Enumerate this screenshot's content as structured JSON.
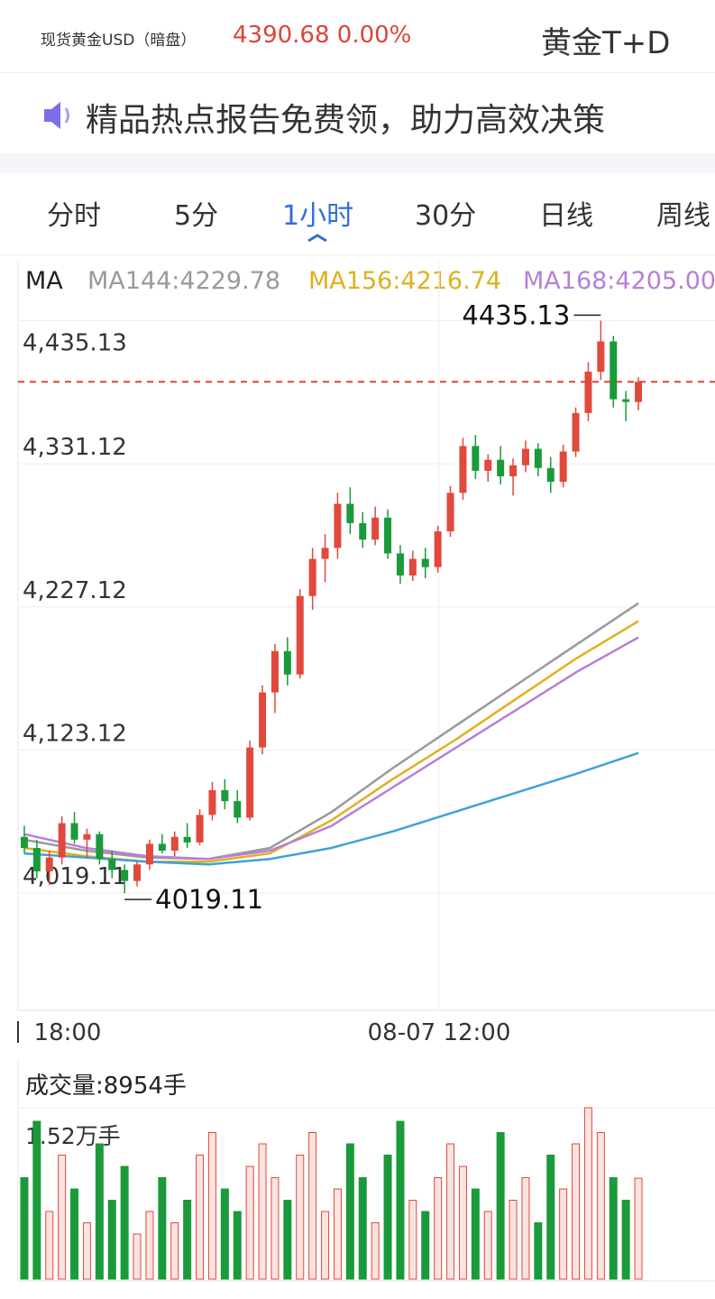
{
  "header": {
    "instrument": "现货黄金USD（暗盘）",
    "quote": "4390.68 0.00%",
    "product": "黄金T+D"
  },
  "banner": {
    "text": "精品热点报告免费领，助力高效决策"
  },
  "tabs": {
    "items": [
      "分时",
      "5分",
      "1小时",
      "30分",
      "日线",
      "周线"
    ],
    "active": 2
  },
  "chart_data": {
    "type": "candlestick",
    "ma_label": "MA",
    "ylim": [
      3934,
      4478
    ],
    "yticks": [
      {
        "value": 4435.13,
        "label": "4,435.13"
      },
      {
        "value": 4331.12,
        "label": "4,331.12"
      },
      {
        "value": 4227.12,
        "label": "4,227.12"
      },
      {
        "value": 4123.12,
        "label": "4,123.12"
      },
      {
        "value": 4019.11,
        "label": "4,019.11"
      }
    ],
    "x_labels": [
      "18:00",
      "08-07 12:00"
    ],
    "max_label": "4435.13",
    "min_label": "4019.11",
    "up_color": "#e0493c",
    "down_color": "#1b9a3b",
    "candles": {
      "open": [
        4060,
        4052,
        4035,
        4045,
        4070,
        4058,
        4062,
        4044,
        4036,
        4028,
        4040,
        4055,
        4050,
        4060,
        4056,
        4076,
        4094,
        4086,
        4074,
        4125,
        4165,
        4195,
        4178,
        4235,
        4262,
        4270,
        4302,
        4288,
        4276,
        4292,
        4266,
        4250,
        4262,
        4256,
        4282,
        4310,
        4344,
        4326,
        4334,
        4322,
        4330,
        4342,
        4328,
        4318,
        4340,
        4368,
        4398,
        4420,
        4378,
        4376
      ],
      "high": [
        4068,
        4058,
        4050,
        4075,
        4078,
        4066,
        4064,
        4050,
        4040,
        4042,
        4058,
        4062,
        4064,
        4070,
        4080,
        4100,
        4102,
        4094,
        4130,
        4170,
        4200,
        4205,
        4240,
        4270,
        4280,
        4310,
        4314,
        4296,
        4300,
        4298,
        4272,
        4268,
        4270,
        4286,
        4315,
        4350,
        4352,
        4338,
        4344,
        4335,
        4348,
        4346,
        4336,
        4345,
        4372,
        4405,
        4435.13,
        4424,
        4384,
        4394
      ],
      "low": [
        4048,
        4030,
        4025,
        4040,
        4055,
        4045,
        4040,
        4030,
        4019.11,
        4024,
        4036,
        4048,
        4046,
        4052,
        4054,
        4072,
        4080,
        4070,
        4072,
        4120,
        4150,
        4170,
        4175,
        4225,
        4245,
        4262,
        4280,
        4270,
        4272,
        4262,
        4244,
        4246,
        4248,
        4252,
        4278,
        4305,
        4320,
        4318,
        4316,
        4308,
        4325,
        4322,
        4310,
        4314,
        4336,
        4362,
        4392,
        4372,
        4362,
        4370
      ],
      "close": [
        4052,
        4035,
        4045,
        4070,
        4058,
        4062,
        4044,
        4036,
        4028,
        4040,
        4055,
        4050,
        4060,
        4056,
        4076,
        4094,
        4086,
        4074,
        4125,
        4165,
        4195,
        4178,
        4235,
        4262,
        4270,
        4302,
        4288,
        4276,
        4292,
        4266,
        4250,
        4262,
        4256,
        4282,
        4310,
        4344,
        4326,
        4334,
        4322,
        4330,
        4342,
        4328,
        4318,
        4340,
        4368,
        4398,
        4420,
        4378,
        4376,
        4390.68
      ]
    },
    "series": [
      {
        "name": "MA144:4229.78",
        "color": "#9a9a9a",
        "values": [
          4058,
          4050,
          4045,
          4044,
          4052,
          4078,
          4110,
          4140,
          4170,
          4200,
          4229.78
        ]
      },
      {
        "name": "MA156:4216.74",
        "color": "#e0b020",
        "values": [
          4052,
          4046,
          4042,
          4042,
          4048,
          4072,
          4102,
          4130,
          4160,
          4190,
          4216.74
        ]
      },
      {
        "name": "MA168:4205.00",
        "color": "#b77fd6",
        "values": [
          4062,
          4052,
          4046,
          4044,
          4050,
          4068,
          4096,
          4124,
          4152,
          4180,
          4205.0
        ]
      },
      {
        "color": "#3ea3d6",
        "values": [
          4048,
          4045,
          4042,
          4040,
          4044,
          4052,
          4064,
          4078,
          4092,
          4106,
          4121
        ]
      }
    ],
    "volume": {
      "title": "成交量:8954手",
      "max_label": "1.52万手",
      "ylim": [
        0,
        15200
      ],
      "values": [
        9000,
        14000,
        6000,
        11000,
        8000,
        5000,
        12000,
        7000,
        10000,
        4000,
        6000,
        9000,
        5000,
        7000,
        11000,
        13000,
        8000,
        6000,
        10000,
        12000,
        9000,
        7000,
        11000,
        13000,
        6000,
        8000,
        12000,
        9000,
        5000,
        11000,
        14000,
        7000,
        6000,
        9000,
        12000,
        10000,
        8000,
        6000,
        13000,
        7000,
        9000,
        5000,
        11000,
        8000,
        12000,
        15200,
        13000,
        9000,
        7000,
        8954
      ]
    }
  }
}
